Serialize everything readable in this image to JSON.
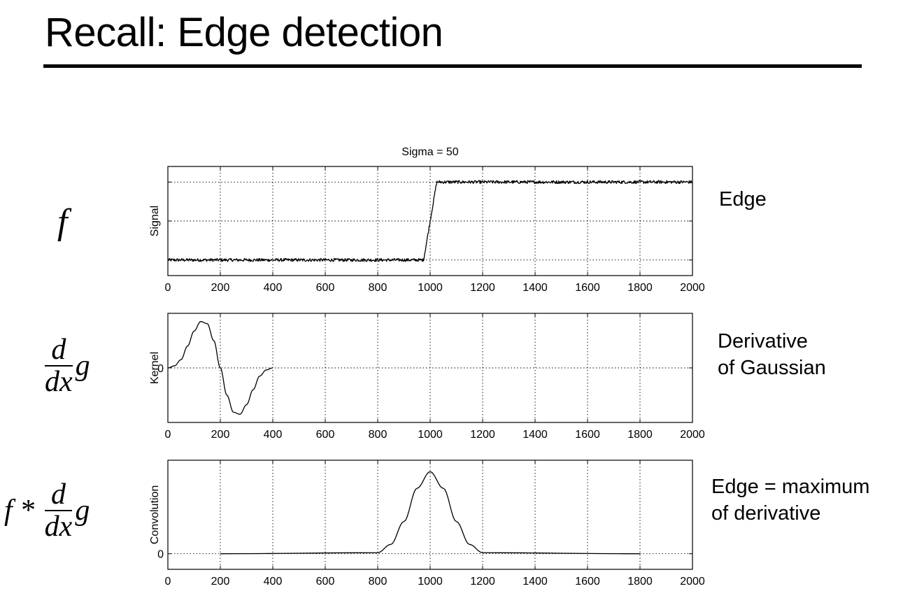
{
  "slide": {
    "title": "Recall: Edge detection"
  },
  "rows": [
    {
      "math_plain": "f",
      "label_lines": [
        "Edge"
      ]
    },
    {
      "math_plain": "d/dx g",
      "label_lines": [
        "Derivative",
        "of Gaussian"
      ]
    },
    {
      "math_plain": "f * d/dx g",
      "label_lines": [
        "Edge = maximum",
        "of derivative"
      ]
    }
  ],
  "math": {
    "f": "f",
    "d": "d",
    "dx": "dx",
    "g": "g",
    "star": "*"
  },
  "chart_data": [
    {
      "type": "line",
      "title": "Sigma = 50",
      "ylabel": "Signal",
      "xlabel": "",
      "xlim": [
        0,
        2000
      ],
      "ylim": [
        -0.2,
        1.2
      ],
      "xticks": [
        0,
        200,
        400,
        600,
        800,
        1000,
        1200,
        1400,
        1600,
        1800,
        2000
      ],
      "yticks": [
        0,
        0.5,
        1
      ],
      "ytick_labels": [],
      "grid": true,
      "series": [
        {
          "x": [
            0,
            975,
            1025,
            2000
          ],
          "y": [
            0,
            0,
            1,
            1
          ],
          "noise": 0.02
        }
      ]
    },
    {
      "type": "line",
      "title": "",
      "ylabel": "Kernel",
      "xlabel": "",
      "xlim": [
        0,
        2000
      ],
      "ylim": [
        -0.008,
        0.008
      ],
      "xticks": [
        0,
        200,
        400,
        600,
        800,
        1000,
        1200,
        1400,
        1600,
        1800,
        2000
      ],
      "yticks": [
        0
      ],
      "ytick_labels": [
        "0"
      ],
      "grid": true,
      "series": [
        {
          "x": [
            0,
            25,
            50,
            75,
            100,
            125,
            150,
            175,
            200,
            225,
            250,
            275,
            300,
            325,
            350,
            375,
            400
          ],
          "y": [
            0,
            0.0003,
            0.0012,
            0.0032,
            0.0054,
            0.0068,
            0.0065,
            0.004,
            0,
            -0.004,
            -0.0065,
            -0.0068,
            -0.0054,
            -0.0032,
            -0.0012,
            -0.0003,
            0
          ]
        }
      ]
    },
    {
      "type": "line",
      "title": "",
      "ylabel": "Convolution",
      "xlabel": "",
      "xlim": [
        0,
        2000
      ],
      "ylim": [
        -0.0015,
        0.009
      ],
      "xticks": [
        0,
        200,
        400,
        600,
        800,
        1000,
        1200,
        1400,
        1600,
        1800,
        2000
      ],
      "yticks": [
        0
      ],
      "ytick_labels": [
        "0"
      ],
      "grid": true,
      "series": [
        {
          "x": [
            200,
            800,
            850,
            900,
            950,
            1000,
            1050,
            1100,
            1150,
            1200,
            1800
          ],
          "y": [
            0,
            0.0001,
            0.0009,
            0.0031,
            0.0063,
            0.0079,
            0.0063,
            0.0031,
            0.0009,
            0.0001,
            0
          ]
        }
      ]
    }
  ]
}
